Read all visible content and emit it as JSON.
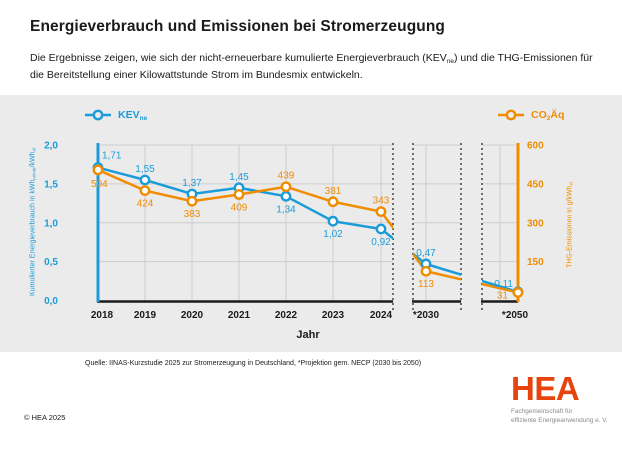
{
  "header": {
    "title": "Energieverbrauch und Emissionen bei Stromerzeugung",
    "subtitle_pre": "Die Ergebnisse zeigen, wie sich der nicht-erneuerbare kumulierte Energieverbrauch (KEV",
    "subtitle_sub": "ne",
    "subtitle_post": ") und die THG-Emissionen für die Bereitstellung einer Kilowattstunde Strom im Bundesmix entwickeln."
  },
  "legend": {
    "kev_label": "KEV",
    "kev_sub": "ne",
    "co2_pre": "CO",
    "co2_sub": "2",
    "co2_post": "Äq"
  },
  "axes": {
    "left_title_pre": "Kumulierter Energieverbrauch in kWh",
    "left_title_sub1": "primär",
    "left_title_mid": "/kWh",
    "left_title_sub2": "el",
    "right_title_pre": "THG-Emissionen in g/kWh",
    "right_title_sub": "el",
    "x_title": "Jahr"
  },
  "chart_data": {
    "type": "line",
    "categories": [
      "2018",
      "2019",
      "2020",
      "2021",
      "2022",
      "2023",
      "2024",
      "*2030",
      "*2050"
    ],
    "series": [
      {
        "name": "KEVne",
        "axis": "left",
        "color": "#1b9cd8",
        "values": [
          1.71,
          1.55,
          1.37,
          1.45,
          1.34,
          1.02,
          0.92,
          0.47,
          0.11
        ],
        "labels": [
          "1,71",
          "1,55",
          "1,37",
          "1,45",
          "1,34",
          "1,02",
          "0,92",
          "0,47",
          "0,11"
        ],
        "label_sides": [
          "above",
          "above",
          "above",
          "above",
          "below",
          "below",
          "below",
          "above",
          "above"
        ]
      },
      {
        "name": "CO2Äq",
        "axis": "right",
        "color": "#f08c00",
        "values": [
          504,
          424,
          383,
          409,
          439,
          381,
          343,
          113,
          31
        ],
        "labels": [
          "504",
          "424",
          "383",
          "409",
          "439",
          "381",
          "343",
          "113",
          "31"
        ],
        "label_sides": [
          "below",
          "below",
          "below",
          "below",
          "above",
          "above",
          "above",
          "below",
          "below"
        ]
      }
    ],
    "left_axis": {
      "ticks": [
        "2,0",
        "1,5",
        "1,0",
        "0,5",
        "0,0"
      ],
      "tick_values": [
        2.0,
        1.5,
        1.0,
        0.5,
        0.0
      ],
      "range": [
        0,
        2.0
      ]
    },
    "right_axis": {
      "ticks": [
        "600",
        "450",
        "300",
        "150"
      ],
      "tick_values": [
        600,
        450,
        300,
        150
      ],
      "range": [
        0,
        600
      ]
    },
    "xlabel": "Jahr",
    "grid": true,
    "axis_breaks_between": [
      [
        "2024",
        "*2030"
      ],
      [
        "*2030",
        "*2050"
      ]
    ],
    "legend_position": "top"
  },
  "source": "Quelle: IINAS-Kurzstudie 2025 zur Stromerzeugung in Deutschland, *Projektion gem. NECP (2030 bis 2050)",
  "footer": {
    "copyright": "© HEA 2025"
  },
  "logo": {
    "text": "HEA",
    "tagline_line1": "Fachgemeinschaft für",
    "tagline_line2": "effiziente Energieanwendung e. V."
  },
  "colors": {
    "kev_blue": "#1b9cd8",
    "co2_orange": "#f08c00",
    "hea_red": "#e6430d",
    "panel_gray": "#ebebeb",
    "grid_gray": "#cccccc",
    "axis_black": "#1a1a1a"
  }
}
